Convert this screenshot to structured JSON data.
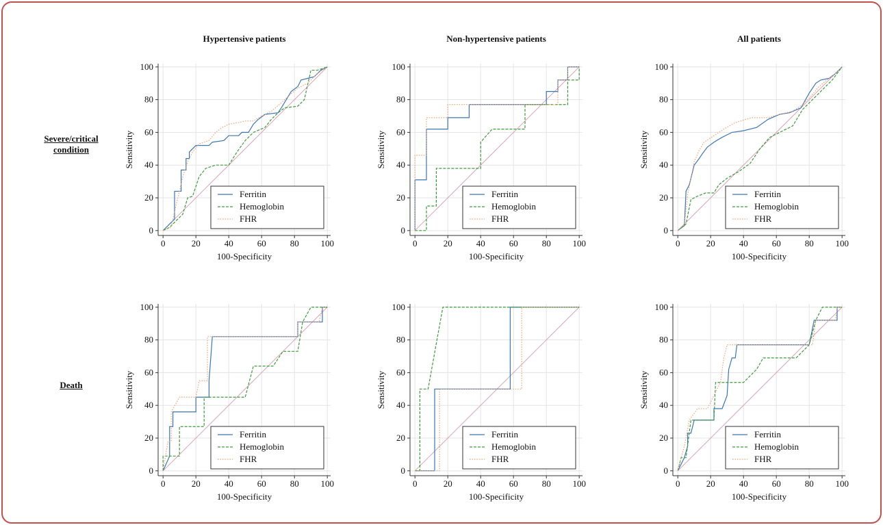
{
  "column_titles": [
    "Hypertensive patients",
    "Non-hypertensive patients",
    "All patients"
  ],
  "row_labels": [
    "Severe/critical condition",
    "Death"
  ],
  "chart_data": [
    {
      "type": "line",
      "xlabel": "100-Specificity",
      "ylabel": "Sensitivity",
      "xlim": [
        -3,
        102
      ],
      "ylim": [
        -3,
        102
      ],
      "xticks": [
        0,
        20,
        40,
        60,
        80,
        100
      ],
      "yticks": [
        0,
        20,
        40,
        60,
        80,
        100
      ],
      "grid": true,
      "legend": "lower right",
      "diagonal": true,
      "series": [
        {
          "name": "Ferritin",
          "color": "#3a76b5",
          "dash": "solid",
          "x": [
            0,
            7,
            7,
            11,
            11,
            14,
            14,
            16,
            16,
            20,
            28,
            30,
            37,
            40,
            46,
            48,
            52,
            55,
            58,
            62,
            70,
            72,
            78,
            82,
            84,
            88,
            92,
            96,
            100
          ],
          "values": [
            0,
            7,
            24,
            24,
            37,
            37,
            44,
            44,
            48,
            52,
            52,
            54,
            55,
            58,
            58,
            60,
            60,
            65,
            68,
            71,
            72,
            75,
            85,
            88,
            92,
            93,
            94,
            98,
            100
          ]
        },
        {
          "name": "Hemoglobin",
          "color": "#3c9a3c",
          "dash": "dashed",
          "x": [
            0,
            4,
            8,
            12,
            15,
            18,
            20,
            22,
            26,
            32,
            40,
            45,
            50,
            55,
            62,
            66,
            70,
            74,
            82,
            86,
            90,
            94,
            100
          ],
          "values": [
            0,
            2,
            6,
            10,
            20,
            21,
            27,
            33,
            38,
            40,
            40,
            48,
            55,
            60,
            63,
            68,
            72,
            75,
            76,
            80,
            98,
            98,
            100
          ]
        },
        {
          "name": "FHR",
          "color": "#f0a070",
          "dash": "dotted",
          "x": [
            0,
            5,
            8,
            10,
            12,
            15,
            18,
            22,
            28,
            32,
            36,
            40,
            46,
            50,
            55,
            60,
            66,
            72,
            76,
            82,
            88,
            94,
            100
          ],
          "values": [
            0,
            2,
            16,
            24,
            33,
            42,
            48,
            53,
            55,
            60,
            63,
            65,
            66,
            67,
            67,
            70,
            73,
            78,
            82,
            87,
            90,
            96,
            100
          ]
        }
      ]
    },
    {
      "type": "line",
      "xlabel": "100-Specificity",
      "ylabel": "Sensitivity",
      "xlim": [
        -3,
        102
      ],
      "ylim": [
        -3,
        102
      ],
      "xticks": [
        0,
        20,
        40,
        60,
        80,
        100
      ],
      "yticks": [
        0,
        20,
        40,
        60,
        80,
        100
      ],
      "grid": true,
      "legend": "lower right",
      "diagonal": true,
      "series": [
        {
          "name": "Ferritin",
          "color": "#3a76b5",
          "dash": "solid",
          "x": [
            0,
            0,
            7,
            7,
            20,
            20,
            33,
            33,
            80,
            80,
            87,
            87,
            93,
            93,
            100
          ],
          "values": [
            0,
            31,
            31,
            62,
            62,
            69,
            69,
            77,
            77,
            85,
            85,
            92,
            92,
            100,
            100
          ]
        },
        {
          "name": "Hemoglobin",
          "color": "#3c9a3c",
          "dash": "dashed",
          "x": [
            0,
            7,
            7,
            13,
            13,
            40,
            40,
            47,
            67,
            67,
            93,
            93,
            100,
            100
          ],
          "values": [
            0,
            0,
            15,
            15,
            38,
            38,
            54,
            62,
            62,
            77,
            77,
            92,
            92,
            100
          ]
        },
        {
          "name": "FHR",
          "color": "#f0a070",
          "dash": "dotted",
          "x": [
            0,
            0,
            7,
            7,
            20,
            20,
            87,
            87,
            93,
            93,
            100
          ],
          "values": [
            0,
            46,
            46,
            69,
            69,
            77,
            77,
            92,
            92,
            100,
            100
          ]
        }
      ]
    },
    {
      "type": "line",
      "xlabel": "100-Specificity",
      "ylabel": "Sensitivity",
      "xlim": [
        -3,
        102
      ],
      "ylim": [
        -3,
        102
      ],
      "xticks": [
        0,
        20,
        40,
        60,
        80,
        100
      ],
      "yticks": [
        0,
        20,
        40,
        60,
        80,
        100
      ],
      "grid": true,
      "legend": "lower right",
      "diagonal": true,
      "series": [
        {
          "name": "Ferritin",
          "color": "#3a76b5",
          "dash": "solid",
          "x": [
            0,
            4,
            5,
            7,
            10,
            13,
            15,
            18,
            22,
            27,
            33,
            40,
            48,
            55,
            62,
            68,
            75,
            80,
            84,
            87,
            92,
            96,
            100
          ],
          "values": [
            0,
            3,
            24,
            28,
            40,
            44,
            47,
            51,
            54,
            57,
            60,
            61,
            63,
            68,
            71,
            72,
            75,
            84,
            90,
            92,
            93,
            96,
            100
          ]
        },
        {
          "name": "Hemoglobin",
          "color": "#3c9a3c",
          "dash": "dashed",
          "x": [
            0,
            5,
            8,
            12,
            17,
            22,
            25,
            30,
            37,
            44,
            50,
            56,
            62,
            70,
            76,
            82,
            88,
            94,
            100
          ],
          "values": [
            0,
            4,
            19,
            21,
            23,
            23,
            28,
            32,
            36,
            41,
            50,
            57,
            60,
            64,
            74,
            80,
            86,
            92,
            100
          ]
        },
        {
          "name": "FHR",
          "color": "#f0a070",
          "dash": "dotted",
          "x": [
            0,
            4,
            6,
            10,
            13,
            16,
            22,
            28,
            35,
            45,
            55,
            62,
            70,
            76,
            80,
            86,
            92,
            96,
            100
          ],
          "values": [
            0,
            4,
            22,
            42,
            49,
            54,
            58,
            62,
            66,
            69,
            69,
            71,
            73,
            77,
            81,
            88,
            93,
            96,
            100
          ]
        }
      ]
    },
    {
      "type": "line",
      "xlabel": "100-Specificity",
      "ylabel": "Sensitivity",
      "xlim": [
        -3,
        102
      ],
      "ylim": [
        -3,
        102
      ],
      "xticks": [
        0,
        20,
        40,
        60,
        80,
        100
      ],
      "yticks": [
        0,
        20,
        40,
        60,
        80,
        100
      ],
      "grid": true,
      "legend": "lower right",
      "diagonal": true,
      "series": [
        {
          "name": "Ferritin",
          "color": "#3a76b5",
          "dash": "solid",
          "x": [
            0,
            4,
            4,
            6,
            6,
            20,
            20,
            28,
            28,
            30,
            82,
            82,
            97,
            97,
            100
          ],
          "values": [
            0,
            9,
            27,
            27,
            36,
            36,
            45,
            45,
            55,
            82,
            82,
            91,
            91,
            100,
            100
          ]
        },
        {
          "name": "Hemoglobin",
          "color": "#3c9a3c",
          "dash": "dashed",
          "x": [
            0,
            0,
            10,
            10,
            25,
            25,
            50,
            55,
            67,
            73,
            82,
            85,
            90,
            100
          ],
          "values": [
            0,
            9,
            9,
            27,
            27,
            45,
            45,
            64,
            64,
            73,
            73,
            91,
            100,
            100
          ]
        },
        {
          "name": "FHR",
          "color": "#f0a070",
          "dash": "dotted",
          "x": [
            0,
            3,
            5,
            5,
            10,
            20,
            22,
            27,
            27,
            82,
            82,
            95,
            97,
            100
          ],
          "values": [
            0,
            18,
            18,
            36,
            45,
            45,
            55,
            55,
            82,
            82,
            91,
            91,
            100,
            100
          ]
        }
      ]
    },
    {
      "type": "line",
      "xlabel": "100-Specificity",
      "ylabel": "Sensitivity",
      "xlim": [
        -3,
        102
      ],
      "ylim": [
        -3,
        102
      ],
      "xticks": [
        0,
        20,
        40,
        60,
        80,
        100
      ],
      "yticks": [
        0,
        20,
        40,
        60,
        80,
        100
      ],
      "grid": true,
      "legend": "lower right",
      "diagonal": true,
      "series": [
        {
          "name": "Ferritin",
          "color": "#3a76b5",
          "dash": "solid",
          "x": [
            0,
            12,
            12,
            58,
            58,
            100
          ],
          "values": [
            0,
            0,
            50,
            50,
            100,
            100
          ]
        },
        {
          "name": "Hemoglobin",
          "color": "#3c9a3c",
          "dash": "dashed",
          "x": [
            0,
            3,
            3,
            8,
            17,
            100
          ],
          "values": [
            0,
            0,
            50,
            50,
            100,
            100
          ]
        },
        {
          "name": "FHR",
          "color": "#f0a070",
          "dash": "dotted",
          "x": [
            0,
            15,
            15,
            65,
            65,
            100
          ],
          "values": [
            0,
            0,
            50,
            50,
            100,
            100
          ]
        }
      ]
    },
    {
      "type": "line",
      "xlabel": "100-Specificity",
      "ylabel": "Sensitivity",
      "xlim": [
        -3,
        102
      ],
      "ylim": [
        -3,
        102
      ],
      "xticks": [
        0,
        20,
        40,
        60,
        80,
        100
      ],
      "yticks": [
        0,
        20,
        40,
        60,
        80,
        100
      ],
      "grid": true,
      "legend": "lower right",
      "diagonal": true,
      "series": [
        {
          "name": "Ferritin",
          "color": "#3a76b5",
          "dash": "solid",
          "x": [
            0,
            4,
            6,
            6,
            8,
            10,
            22,
            22,
            27,
            30,
            31,
            33,
            35,
            36,
            80,
            83,
            97,
            97,
            100
          ],
          "values": [
            0,
            8,
            15,
            23,
            23,
            31,
            31,
            38,
            38,
            46,
            62,
            69,
            69,
            77,
            77,
            92,
            92,
            100,
            100
          ]
        },
        {
          "name": "Hemoglobin",
          "color": "#3c9a3c",
          "dash": "dashed",
          "x": [
            0,
            2,
            5,
            8,
            22,
            23,
            40,
            48,
            52,
            72,
            80,
            84,
            88,
            100
          ],
          "values": [
            0,
            8,
            8,
            31,
            31,
            54,
            54,
            62,
            69,
            69,
            77,
            92,
            100,
            100
          ]
        },
        {
          "name": "FHR",
          "color": "#f0a070",
          "dash": "dotted",
          "x": [
            0,
            2,
            4,
            7,
            12,
            18,
            22,
            26,
            28,
            30,
            82,
            84,
            96,
            97,
            100
          ],
          "values": [
            0,
            8,
            15,
            31,
            38,
            38,
            46,
            54,
            69,
            77,
            77,
            92,
            92,
            100,
            100
          ]
        }
      ]
    }
  ]
}
